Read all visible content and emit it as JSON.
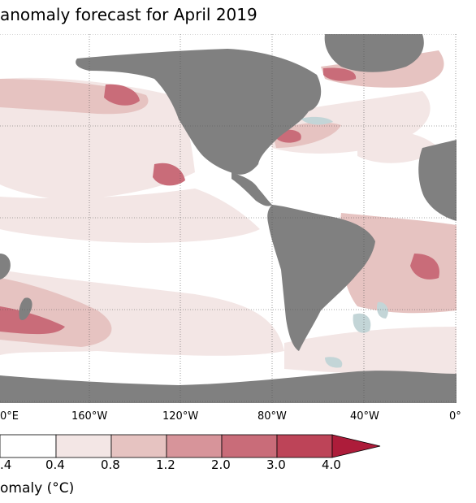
{
  "title": "anomaly forecast for April 2019",
  "x_ticks": [
    "0°E",
    "160°W",
    "120°W",
    "80°W",
    "40°W",
    "0°"
  ],
  "colorbar": {
    "ticks": [
      ".4",
      "0.4",
      "0.8",
      "1.2",
      "2.0",
      "3.0",
      "4.0"
    ],
    "colors": [
      "#ffffff",
      "#f3e6e5",
      "#e6c3c1",
      "#d7949a",
      "#c96c79",
      "#bd4458",
      "#ad1c3a"
    ],
    "label": "omaly (°C)"
  },
  "map": {
    "land_color": "#808080",
    "ocean_color": "#ffffff",
    "gridlines": "dotted"
  }
}
